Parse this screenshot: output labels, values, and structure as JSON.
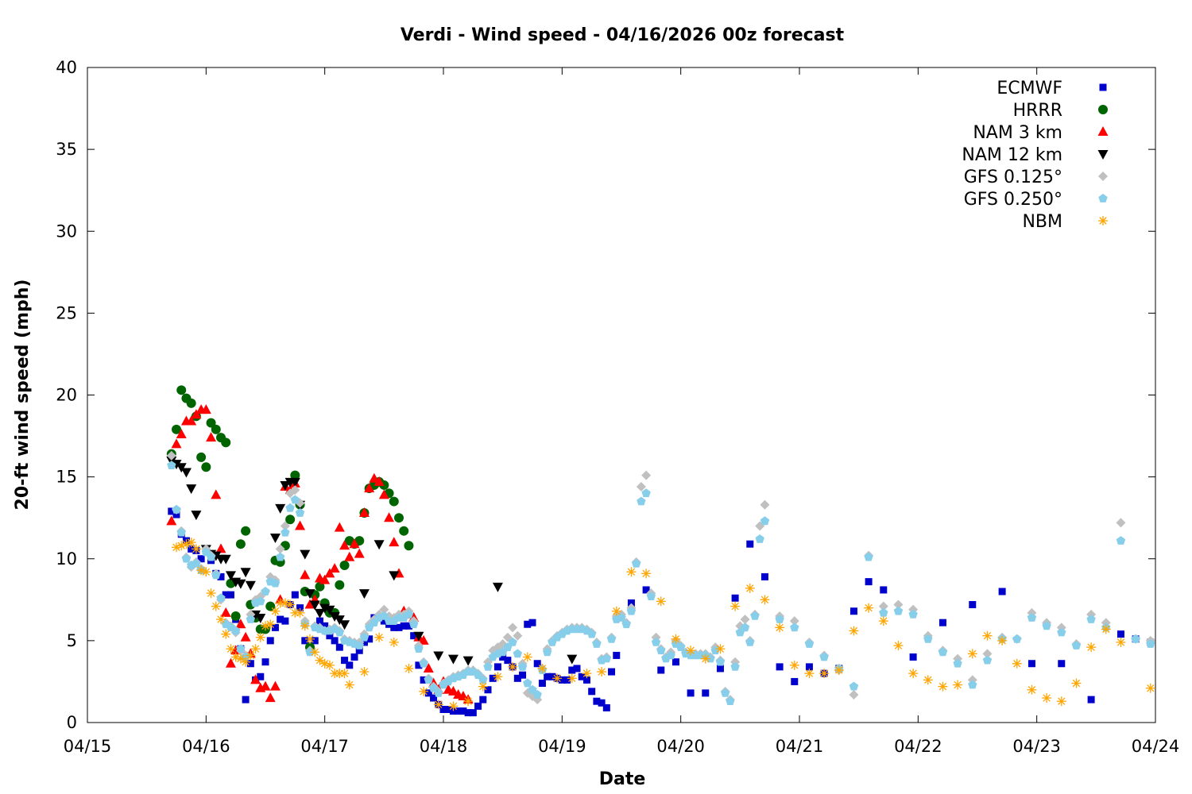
{
  "chart_data": {
    "type": "scatter",
    "title": "Verdi - Wind speed - 04/16/2026 00z forecast",
    "xlabel": "Date",
    "ylabel": "20-ft wind speed (mph)",
    "x_units": "hours since 04/15 00z",
    "xlim": [
      0,
      216
    ],
    "ylim": [
      0,
      40
    ],
    "yticks": [
      0,
      5,
      10,
      15,
      20,
      25,
      30,
      35,
      40
    ],
    "xticks": [
      {
        "h": 0,
        "label": "04/15"
      },
      {
        "h": 24,
        "label": "04/16"
      },
      {
        "h": 48,
        "label": "04/17"
      },
      {
        "h": 72,
        "label": "04/18"
      },
      {
        "h": 96,
        "label": "04/19"
      },
      {
        "h": 120,
        "label": "04/20"
      },
      {
        "h": 144,
        "label": "04/21"
      },
      {
        "h": 168,
        "label": "04/22"
      },
      {
        "h": 192,
        "label": "04/23"
      },
      {
        "h": 216,
        "label": "04/24"
      }
    ],
    "grid": false,
    "legend_position": "top-right",
    "series": [
      {
        "name": "ECMWF",
        "marker": "square",
        "color": "#0000cc",
        "segments": [
          {
            "start": 17,
            "step": 1,
            "values": [
              12.9,
              12.7,
              11.5,
              11.1,
              10.6,
              10.5,
              10.0,
              10.5,
              9.9,
              9.1,
              8.9,
              7.8,
              7.8,
              6.3,
              4.5,
              1.4,
              3.6,
              2.6,
              2.8,
              3.7,
              5.0,
              5.8,
              6.3,
              6.2,
              7.2,
              7.8,
              7.0,
              5.0,
              4.4,
              5.0,
              6.2,
              5.9,
              5.3,
              5.0,
              4.6,
              3.8,
              3.5,
              4.0,
              4.4,
              4.9,
              5.1,
              6.4,
              6.4,
              6.2,
              6.0,
              5.8,
              5.8,
              5.9,
              5.9,
              5.3,
              3.5,
              2.6,
              1.8,
              1.5,
              1.1,
              0.8,
              0.8,
              0.7,
              0.7,
              0.7,
              0.6,
              0.6,
              1.0,
              1.4,
              2.0,
              2.7,
              3.4,
              4.0,
              3.8,
              3.4,
              2.7,
              2.9,
              6.0,
              6.1,
              3.6,
              2.4,
              2.8,
              2.8,
              2.7,
              2.6,
              2.6,
              3.2,
              3.3,
              2.8,
              2.6,
              1.9,
              1.3,
              1.2,
              0.9,
              3.1,
              4.1
            ]
          }
        ],
        "points": [
          [
            110,
            7.3
          ],
          [
            113,
            8.1
          ],
          [
            116,
            3.2
          ],
          [
            119,
            3.7
          ],
          [
            122,
            1.8
          ],
          [
            125,
            1.8
          ],
          [
            128,
            3.3
          ],
          [
            131,
            7.6
          ],
          [
            134,
            10.9
          ],
          [
            137,
            8.9
          ],
          [
            140,
            3.4
          ],
          [
            143,
            2.5
          ],
          [
            146,
            3.4
          ],
          [
            149,
            3.0
          ],
          [
            152,
            3.3
          ],
          [
            155,
            6.8
          ],
          [
            158,
            8.6
          ],
          [
            161,
            8.1
          ],
          [
            167,
            4.0
          ],
          [
            173,
            6.1
          ],
          [
            179,
            7.2
          ],
          [
            185,
            8.0
          ],
          [
            191,
            3.6
          ],
          [
            197,
            3.6
          ],
          [
            203,
            1.4
          ],
          [
            209,
            5.4
          ],
          [
            212,
            5.1
          ],
          [
            215,
            4.9
          ]
        ]
      },
      {
        "name": "HRRR",
        "marker": "circle",
        "color": "#006400",
        "segments": [
          {
            "start": 17,
            "step": 1,
            "values": [
              16.4,
              17.9,
              20.3,
              19.8,
              19.5,
              18.7,
              16.2,
              15.6,
              18.3,
              17.9,
              17.4,
              17.1,
              8.5,
              6.5,
              10.9,
              11.7,
              7.2,
              6.4,
              5.7,
              5.7,
              7.1,
              9.9,
              9.8,
              10.8,
              12.4,
              15.1,
              13.3,
              8.0,
              4.6,
              7.8,
              8.3,
              7.3,
              6.7,
              6.7,
              8.4,
              9.6,
              11.1,
              10.9,
              11.1,
              12.8,
              14.3,
              14.5,
              14.7,
              14.5,
              14.0,
              13.5,
              12.5,
              11.7,
              10.8
            ]
          }
        ],
        "points": []
      },
      {
        "name": "NAM 3 km",
        "marker": "triangle-up",
        "color": "#ff0000",
        "segments": [
          {
            "start": 17,
            "step": 1,
            "values": [
              12.3,
              17.0,
              17.6,
              18.4,
              18.4,
              18.8,
              19.1,
              19.1,
              17.4,
              13.9,
              10.6,
              6.7,
              3.6,
              4.4,
              6.0,
              5.2,
              4.2,
              2.6,
              2.1,
              2.2,
              1.5,
              2.2,
              7.5,
              14.4,
              14.2,
              14.6,
              12.0,
              9.0,
              7.2,
              7.5,
              8.8,
              8.7,
              9.1,
              9.4,
              11.9,
              10.8,
              10.1,
              10.9,
              10.3,
              12.8,
              14.3,
              14.9,
              14.7,
              13.9,
              12.5,
              11.0,
              9.1,
              6.8,
              6.6,
              6.4,
              5.2,
              5.0,
              3.3,
              2.4,
              2.0,
              2.5,
              2.0,
              1.9,
              1.7,
              1.6,
              1.4
            ]
          }
        ],
        "points": []
      },
      {
        "name": "NAM 12 km",
        "marker": "triangle-down",
        "color": "#000000",
        "segments": [],
        "points": [
          [
            17,
            16.0
          ],
          [
            18,
            15.8
          ],
          [
            19,
            15.6
          ],
          [
            20,
            15.3
          ],
          [
            21,
            14.3
          ],
          [
            22,
            12.7
          ],
          [
            24,
            10.6
          ],
          [
            25,
            10.3
          ],
          [
            26,
            10.2
          ],
          [
            27,
            10.0
          ],
          [
            28,
            10.0
          ],
          [
            29,
            9.0
          ],
          [
            30,
            8.6
          ],
          [
            31,
            8.5
          ],
          [
            32,
            9.2
          ],
          [
            33,
            8.4
          ],
          [
            34,
            6.6
          ],
          [
            35,
            6.4
          ],
          [
            38,
            11.3
          ],
          [
            39,
            13.1
          ],
          [
            40,
            14.5
          ],
          [
            41,
            14.7
          ],
          [
            42,
            14.7
          ],
          [
            43,
            13.3
          ],
          [
            44,
            10.3
          ],
          [
            45,
            7.9
          ],
          [
            46,
            7.2
          ],
          [
            47,
            6.7
          ],
          [
            48,
            7.0
          ],
          [
            49,
            6.9
          ],
          [
            50,
            6.5
          ],
          [
            51,
            6.3
          ],
          [
            52,
            6.0
          ],
          [
            56,
            7.9
          ],
          [
            59,
            10.9
          ],
          [
            62,
            9.0
          ],
          [
            67,
            5.3
          ],
          [
            71,
            4.1
          ],
          [
            74,
            3.9
          ],
          [
            77,
            3.8
          ],
          [
            83,
            8.3
          ],
          [
            98,
            3.9
          ]
        ]
      },
      {
        "name": "GFS 0.125°",
        "marker": "diamond",
        "color": "#c0c0c0",
        "segments": [
          {
            "start": 17,
            "step": 1,
            "values": [
              16.3,
              13.0,
              11.7,
              10.1,
              9.5,
              9.8,
              9.4,
              10.6,
              10.2,
              9.1,
              7.5,
              6.1,
              5.9,
              5.5,
              4.4,
              4.1,
              6.6,
              7.5,
              7.7,
              8.0,
              8.9,
              8.7,
              10.6,
              12.0,
              14.0,
              14.2,
              13.4,
              6.2,
              4.4,
              5.9,
              5.8,
              5.6,
              5.7,
              5.8,
              5.6,
              5.1,
              5.0,
              4.9,
              4.9,
              5.4,
              6.0,
              6.3,
              6.6,
              6.9,
              6.5,
              6.4,
              6.6,
              6.6,
              6.8,
              6.2,
              4.7,
              3.7,
              2.7,
              2.2,
              1.9,
              2.4,
              2.6,
              2.8,
              2.9,
              3.0,
              3.2,
              3.2,
              3.0,
              2.7,
              3.7,
              4.4,
              4.6,
              4.8,
              5.2,
              5.8,
              5.3,
              3.6,
              1.8,
              1.6,
              1.4,
              3.3,
              4.5,
              5.0,
              5.3,
              5.5,
              5.7,
              5.8,
              5.8,
              5.8,
              5.7,
              5.5,
              4.9,
              3.9,
              4.0,
              5.2,
              6.5,
              6.6,
              6.1,
              7.0,
              9.8,
              14.4,
              15.1,
              7.9,
              5.2,
              4.5,
              4.0,
              4.3,
              5.0,
              4.7,
              4.3,
              4.2,
              4.2,
              4.2,
              4.2,
              4.0,
              4.6,
              3.8,
              1.9,
              1.4,
              3.7,
              5.9,
              6.3,
              5.0,
              6.6,
              12.0,
              13.3
            ]
          },
          {
            "start": 140,
            "step": 3,
            "values": [
              6.5,
              6.2,
              4.9,
              4.1,
              3.2,
              1.7,
              10.2,
              7.1,
              7.2,
              6.9,
              5.3,
              4.4,
              3.9,
              2.6,
              4.2,
              5.2,
              5.1,
              6.7,
              6.1,
              5.8,
              4.8,
              6.6,
              6.1,
              12.2,
              5.1,
              5.0
            ]
          }
        ],
        "points": []
      },
      {
        "name": "GFS 0.250°",
        "marker": "pentagon",
        "color": "#87ceeb",
        "segments": [
          {
            "start": 17,
            "step": 1,
            "values": [
              15.7,
              13.0,
              11.6,
              10.0,
              9.6,
              9.7,
              9.3,
              10.4,
              10.1,
              9.0,
              7.6,
              6.0,
              5.8,
              5.6,
              4.5,
              4.0,
              6.3,
              7.3,
              7.4,
              8.0,
              8.6,
              8.5,
              10.1,
              11.6,
              13.1,
              13.6,
              12.8,
              6.0,
              4.3,
              5.8,
              5.7,
              5.6,
              5.6,
              5.7,
              5.5,
              5.0,
              4.9,
              4.8,
              4.7,
              5.2,
              5.8,
              6.1,
              6.4,
              6.5,
              6.2,
              6.2,
              6.4,
              6.4,
              6.6,
              6.0,
              4.5,
              3.6,
              2.6,
              2.1,
              1.8,
              2.3,
              2.5,
              2.7,
              2.8,
              2.9,
              3.1,
              3.1,
              2.9,
              2.6,
              3.4,
              4.0,
              4.2,
              4.3,
              4.6,
              4.9,
              4.2,
              3.4,
              2.4,
              2.0,
              1.7,
              3.2,
              4.3,
              4.9,
              5.2,
              5.4,
              5.6,
              5.7,
              5.7,
              5.7,
              5.6,
              5.4,
              4.8,
              3.8,
              3.9,
              5.1,
              6.3,
              6.4,
              6.0,
              6.8,
              9.7,
              13.5,
              14.0,
              7.7,
              4.9,
              4.4,
              3.9,
              4.1,
              4.8,
              4.6,
              4.2,
              4.1,
              4.1,
              4.1,
              4.1,
              3.9,
              4.4,
              3.7,
              1.8,
              1.3,
              3.4,
              5.5,
              5.8,
              4.9,
              6.5,
              11.2,
              12.3
            ]
          },
          {
            "start": 140,
            "step": 3,
            "values": [
              6.3,
              5.8,
              4.8,
              4.0,
              3.3,
              2.2,
              10.1,
              6.7,
              6.8,
              6.6,
              5.1,
              4.3,
              3.6,
              2.3,
              3.8,
              5.1,
              5.1,
              6.4,
              5.9,
              5.5,
              4.7,
              6.3,
              5.8,
              11.1,
              5.1,
              4.8
            ]
          }
        ],
        "points": []
      },
      {
        "name": "NBM",
        "marker": "asterisk",
        "color": "#ffa500",
        "segments": [
          {
            "start": 18,
            "step": 1,
            "values": [
              10.7,
              10.8,
              10.9,
              11.0,
              10.6,
              9.3,
              9.2,
              7.9,
              7.1,
              6.3,
              5.4,
              4.5,
              4.0,
              3.9,
              3.7,
              4.1,
              4.5,
              5.2,
              5.9,
              6.0,
              6.8,
              7.3,
              7.3,
              7.2,
              6.7,
              6.7,
              5.9,
              5.1,
              4.3,
              3.8,
              3.6,
              3.5,
              3.0,
              3.0,
              3.0,
              2.3
            ]
          },
          {
            "start": 56,
            "step": 3,
            "values": [
              3.1,
              5.2,
              4.9,
              3.3,
              1.9,
              1.1,
              1.0,
              1.3,
              2.2,
              2.8,
              3.4,
              4.0,
              3.3,
              2.7,
              2.7,
              3.0,
              3.1,
              6.8,
              9.2,
              9.1,
              7.4,
              5.1,
              4.4,
              3.9,
              4.5,
              7.1,
              8.2,
              7.5,
              5.8,
              3.5,
              3.0,
              3.0,
              3.2,
              5.6,
              7.0,
              6.2,
              4.7,
              3.0,
              2.6,
              2.2,
              2.3,
              4.2,
              5.3,
              5.0,
              3.6,
              2.0,
              1.5,
              1.3,
              2.4,
              4.6,
              5.7,
              4.9
            ]
          }
        ],
        "points": [
          [
            215,
            2.1
          ]
        ]
      }
    ]
  }
}
